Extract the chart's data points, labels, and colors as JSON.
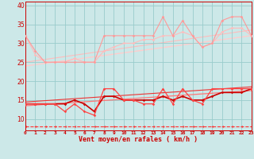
{
  "xlabel": "Vent moyen/en rafales ( km/h )",
  "xlim": [
    0,
    23
  ],
  "ylim": [
    7,
    41
  ],
  "yticks": [
    10,
    15,
    20,
    25,
    30,
    35,
    40
  ],
  "xticks": [
    0,
    1,
    2,
    3,
    4,
    5,
    6,
    7,
    8,
    9,
    10,
    11,
    12,
    13,
    14,
    15,
    16,
    17,
    18,
    19,
    20,
    21,
    22,
    23
  ],
  "bg_color": "#cce8e8",
  "grid_color": "#99cccc",
  "upper_spike": {
    "x": [
      0,
      1,
      2,
      3,
      4,
      5,
      6,
      7,
      8,
      9,
      10,
      11,
      12,
      13,
      14,
      15,
      16,
      17,
      18,
      19,
      20,
      21,
      22,
      23
    ],
    "y": [
      32,
      28,
      25,
      25,
      25,
      25,
      25,
      25,
      32,
      32,
      32,
      32,
      32,
      32,
      37,
      32,
      36,
      32,
      29,
      30,
      36,
      37,
      37,
      32
    ],
    "color": "#ff9999",
    "lw": 0.8,
    "ms": 2.0
  },
  "upper_smooth": {
    "x": [
      0,
      1,
      2,
      3,
      4,
      5,
      6,
      7,
      8,
      9,
      10,
      11,
      12,
      13,
      14,
      15,
      16,
      17,
      18,
      19,
      20,
      21,
      22,
      23
    ],
    "y": [
      32,
      27,
      25,
      25,
      25,
      26,
      25,
      25,
      28,
      29,
      30,
      30,
      31,
      31,
      32,
      32,
      33,
      32,
      29,
      30,
      33,
      34,
      34,
      32
    ],
    "color": "#ffbbbb",
    "lw": 0.8,
    "ms": 2.0
  },
  "upper_trend": {
    "x": [
      0,
      23
    ],
    "y": [
      24.0,
      32.0
    ],
    "color": "#ffcccc",
    "lw": 1.0
  },
  "upper_trend2": {
    "x": [
      0,
      23
    ],
    "y": [
      25.0,
      33.5
    ],
    "color": "#ffbbbb",
    "lw": 0.8
  },
  "lower_spike": {
    "x": [
      0,
      1,
      2,
      3,
      4,
      5,
      6,
      7,
      8,
      9,
      10,
      11,
      12,
      13,
      14,
      15,
      16,
      17,
      18,
      19,
      20,
      21,
      22,
      23
    ],
    "y": [
      14,
      14,
      14,
      14,
      12,
      14,
      12,
      11,
      18,
      18,
      15,
      15,
      14,
      14,
      18,
      14,
      18,
      15,
      14,
      18,
      18,
      18,
      18,
      18
    ],
    "color": "#ff4444",
    "lw": 0.9,
    "ms": 2.0
  },
  "lower_smooth": {
    "x": [
      0,
      1,
      2,
      3,
      4,
      5,
      6,
      7,
      8,
      9,
      10,
      11,
      12,
      13,
      14,
      15,
      16,
      17,
      18,
      19,
      20,
      21,
      22,
      23
    ],
    "y": [
      14,
      14,
      14,
      14,
      14,
      15,
      14,
      12,
      16,
      16,
      15,
      15,
      15,
      15,
      16,
      15,
      16,
      15,
      15,
      16,
      17,
      17,
      17,
      18
    ],
    "color": "#cc0000",
    "lw": 1.2,
    "ms": 2.0
  },
  "lower_trend": {
    "x": [
      0,
      23
    ],
    "y": [
      13.5,
      17.5
    ],
    "color": "#ff7777",
    "lw": 0.9
  },
  "lower_trend2": {
    "x": [
      0,
      23
    ],
    "y": [
      14.5,
      18.5
    ],
    "color": "#ee3333",
    "lw": 0.8
  },
  "bottom_dashed_x": [
    0,
    1,
    2,
    3,
    4,
    5,
    6,
    7,
    8,
    9,
    10,
    11,
    12,
    13,
    14,
    15,
    16,
    17,
    18,
    19,
    20,
    21,
    22,
    23
  ],
  "bottom_dashed_y": [
    8,
    8,
    8,
    8,
    8,
    8,
    8,
    8,
    8,
    8,
    8,
    8,
    8,
    8,
    8,
    8,
    8,
    8,
    8,
    8,
    8,
    8,
    8,
    8
  ]
}
